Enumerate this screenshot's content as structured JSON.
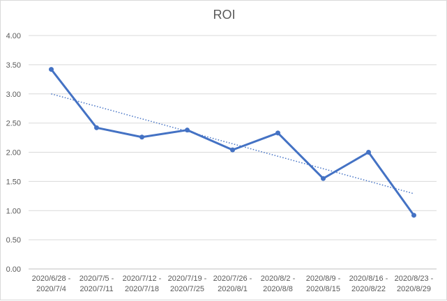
{
  "chart_data": {
    "type": "line",
    "title": "ROI",
    "xlabel": "",
    "ylabel": "",
    "categories": [
      [
        "2020/6/28 -",
        "2020/7/4"
      ],
      [
        "2020/7/5 -",
        "2020/7/11"
      ],
      [
        "2020/7/12 -",
        "2020/7/18"
      ],
      [
        "2020/7/19 -",
        "2020/7/25"
      ],
      [
        "2020/7/26 -",
        "2020/8/1"
      ],
      [
        "2020/8/2 -",
        "2020/8/8"
      ],
      [
        "2020/8/9 -",
        "2020/8/15"
      ],
      [
        "2020/8/16 -",
        "2020/8/22"
      ],
      [
        "2020/8/23 -",
        "2020/8/29"
      ]
    ],
    "series": [
      {
        "name": "",
        "values": [
          3.42,
          2.42,
          2.26,
          2.38,
          2.04,
          2.33,
          1.55,
          2.0,
          0.92
        ],
        "color": "#4472c4"
      }
    ],
    "trendline": {
      "type": "linear",
      "style": "dotted",
      "color": "#4472c4",
      "start": 3.0,
      "end": 1.29
    },
    "ylim": [
      0,
      4
    ],
    "yticks": [
      "0.00",
      "0.50",
      "1.00",
      "1.50",
      "2.00",
      "2.50",
      "3.00",
      "3.50",
      "4.00"
    ],
    "grid": true,
    "legend": "none"
  }
}
